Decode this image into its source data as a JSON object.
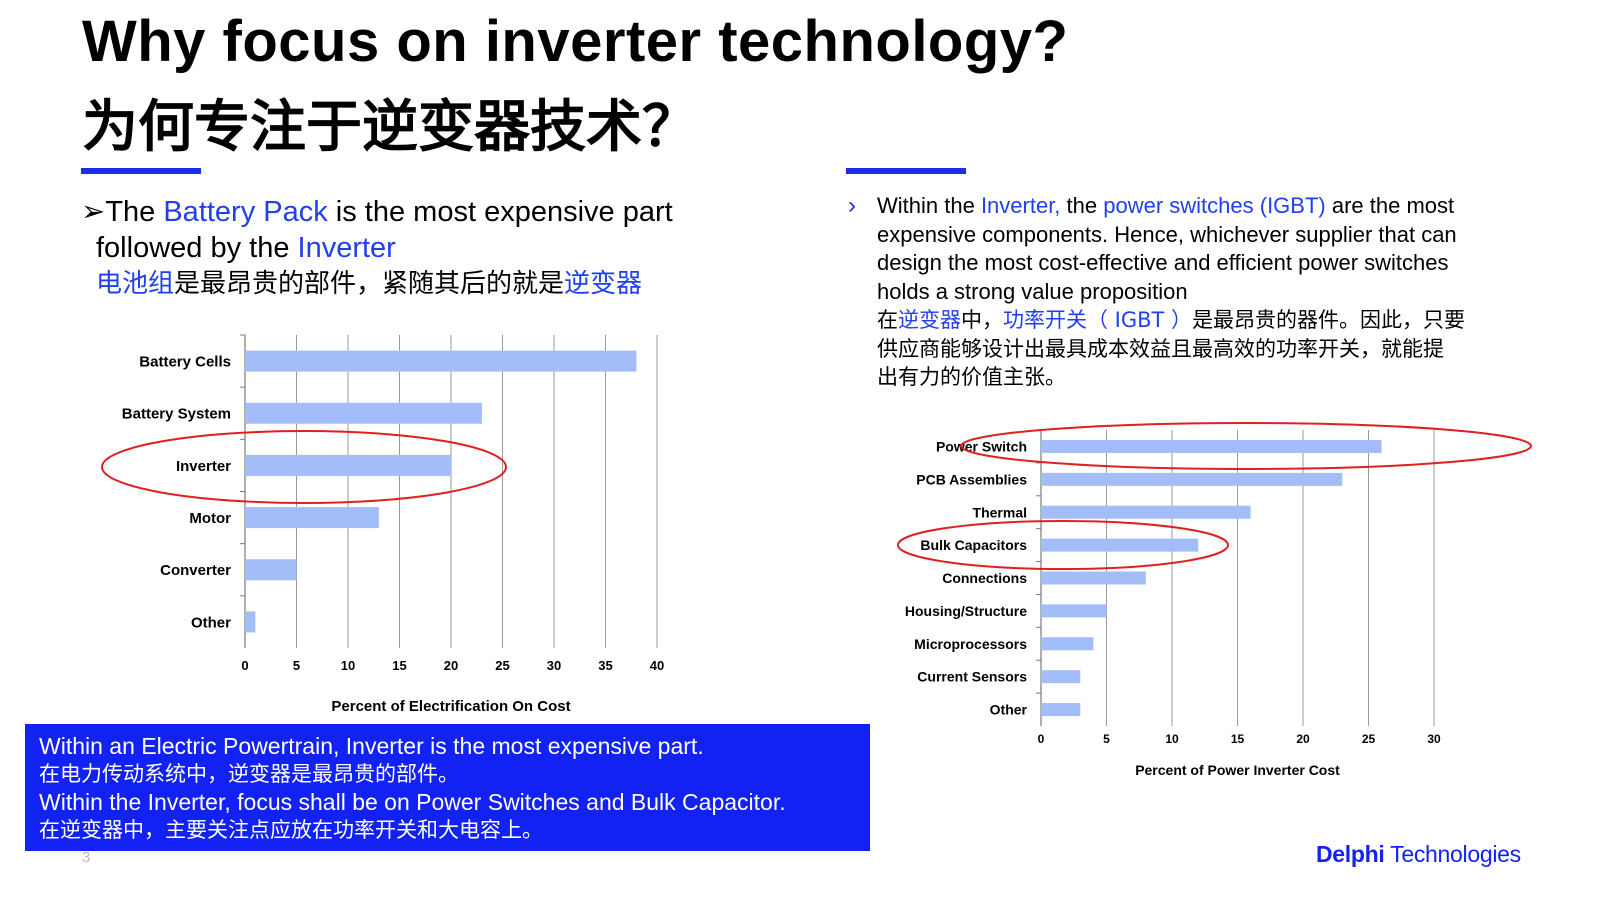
{
  "title": {
    "en": "Why focus on inverter technology?",
    "zh": "为何专注于逆变器技术？"
  },
  "colors": {
    "accent": "#1a2fe6",
    "bar": "#a3bdf8",
    "highlight_ellipse": "#e02020",
    "summary_bg": "#1222f5"
  },
  "left_bullet": {
    "marker": "➢",
    "t1": "The ",
    "h1": "Battery Pack",
    "t2": " is the most expensive part",
    "t3": "followed by the ",
    "h2": "Inverter",
    "zh_h1": "电池组",
    "zh_t1": "是最昂贵的部件，紧随其后的就是",
    "zh_h2": "逆变器"
  },
  "right_bullet": {
    "marker": "›",
    "t1": "Within the ",
    "h1": "Inverter,",
    "t2": " the ",
    "h2": "power switches (IGBT)",
    "t3": " are the most",
    "t4": "expensive components. Hence, whichever supplier that can",
    "t5": "design the most cost-effective and efficient power switches",
    "t6": "holds a strong value proposition",
    "zh_t1": "在",
    "zh_h1": "逆变器",
    "zh_t2": "中，",
    "zh_h2": "功率开关（ IGBT ）",
    "zh_t3": "是最昂贵的器件。因此，只要",
    "zh_t4": "供应商能够设计出最具成本效益且最高效的功率开关，就能提",
    "zh_t5": "出有力的价值主张。"
  },
  "chart_data": [
    {
      "type": "bar",
      "orientation": "horizontal",
      "categories": [
        "Battery Cells",
        "Battery System",
        "Inverter",
        "Motor",
        "Converter",
        "Other"
      ],
      "values": [
        38,
        23,
        20,
        13,
        5,
        1
      ],
      "xlabel": "Percent of Electrification On Cost",
      "xlim": [
        0,
        40
      ],
      "xticks": [
        0,
        5,
        10,
        15,
        20,
        25,
        30,
        35,
        40
      ],
      "grid": "vertical",
      "highlighted": [
        "Inverter"
      ]
    },
    {
      "type": "bar",
      "orientation": "horizontal",
      "categories": [
        "Power Switch",
        "PCB Assemblies",
        "Thermal",
        "Bulk Capacitors",
        "Connections",
        "Housing/Structure",
        "Microprocessors",
        "Current Sensors",
        "Other"
      ],
      "values": [
        26,
        23,
        16,
        12,
        8,
        5,
        4,
        3,
        3
      ],
      "xlabel": "Percent of Power Inverter  Cost",
      "xlim": [
        0,
        30
      ],
      "xticks": [
        0,
        5,
        10,
        15,
        20,
        25,
        30
      ],
      "grid": "vertical",
      "highlighted": [
        "Power Switch",
        "Bulk Capacitors"
      ]
    }
  ],
  "summary": {
    "l1": "Within an Electric Powertrain, Inverter is the most expensive part.",
    "l2": "在电力传动系统中，逆变器是最昂贵的部件。",
    "l3": "Within the Inverter, focus shall be on Power Switches and Bulk Capacitor.",
    "l4": "在逆变器中，主要关注点应放在功率开关和大电容上。"
  },
  "page_number": "3",
  "logo": {
    "bold": "Delphi",
    "regular": " Technologies"
  }
}
